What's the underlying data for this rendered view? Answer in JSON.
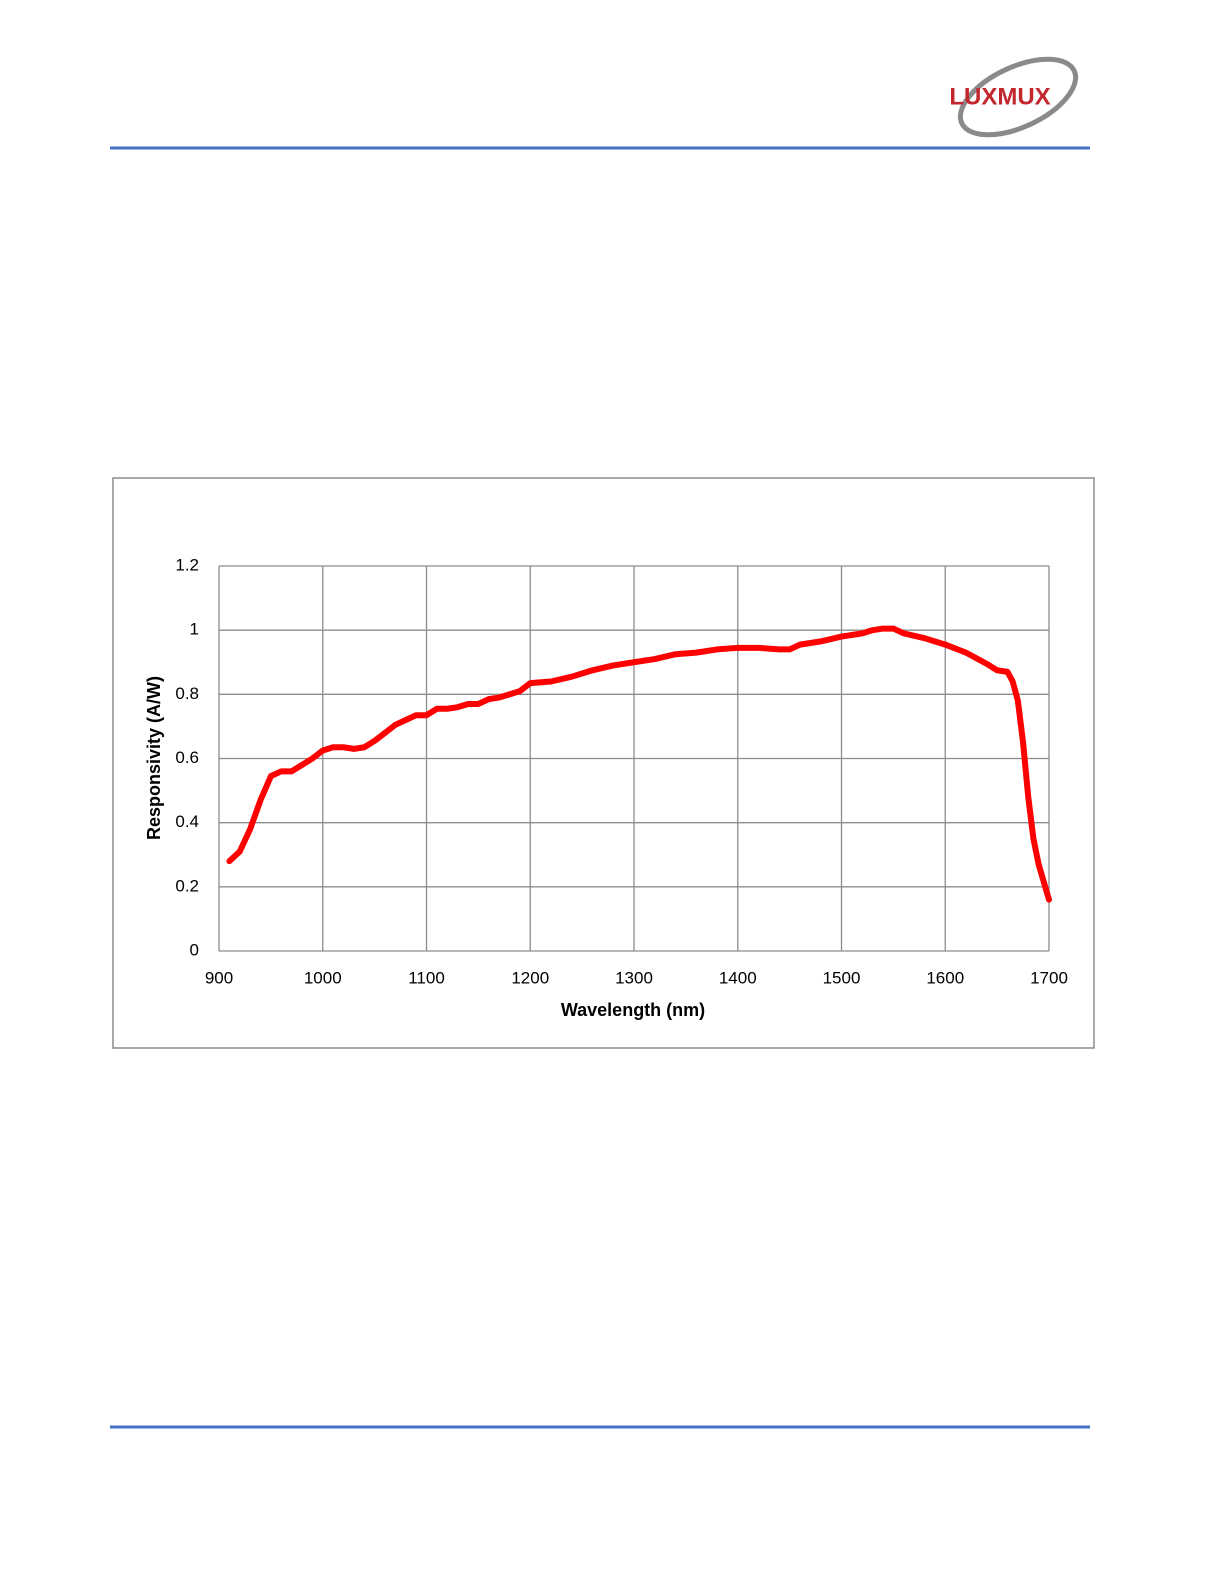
{
  "header": {
    "logo": "LUXMUX"
  },
  "chart_data": {
    "type": "line",
    "x_label": "Wavelength (nm)",
    "y_label": "Responsivity (A/W)",
    "x": [
      910,
      920,
      930,
      940,
      950,
      960,
      970,
      980,
      990,
      1000,
      1010,
      1020,
      1030,
      1040,
      1050,
      1060,
      1070,
      1080,
      1090,
      1100,
      1110,
      1120,
      1130,
      1140,
      1150,
      1160,
      1170,
      1180,
      1190,
      1200,
      1220,
      1240,
      1260,
      1280,
      1300,
      1320,
      1340,
      1360,
      1380,
      1400,
      1420,
      1440,
      1450,
      1460,
      1480,
      1500,
      1520,
      1530,
      1540,
      1550,
      1560,
      1580,
      1600,
      1620,
      1640,
      1650,
      1660,
      1665,
      1670,
      1675,
      1680,
      1685,
      1690,
      1700
    ],
    "series": [
      {
        "color": "#ff0000",
        "values": [
          0.28,
          0.31,
          0.38,
          0.47,
          0.545,
          0.56,
          0.56,
          0.58,
          0.6,
          0.625,
          0.635,
          0.635,
          0.63,
          0.635,
          0.655,
          0.68,
          0.705,
          0.72,
          0.735,
          0.735,
          0.755,
          0.755,
          0.76,
          0.77,
          0.77,
          0.785,
          0.79,
          0.8,
          0.81,
          0.835,
          0.84,
          0.855,
          0.875,
          0.89,
          0.9,
          0.91,
          0.925,
          0.93,
          0.94,
          0.945,
          0.945,
          0.94,
          0.94,
          0.955,
          0.965,
          0.98,
          0.99,
          1.0,
          1.005,
          1.005,
          0.99,
          0.975,
          0.955,
          0.93,
          0.895,
          0.875,
          0.87,
          0.84,
          0.78,
          0.65,
          0.48,
          0.35,
          0.27,
          0.16
        ]
      }
    ],
    "xlim": [
      900,
      1700
    ],
    "xticks": [
      900,
      1000,
      1100,
      1200,
      1300,
      1400,
      1500,
      1600,
      1700
    ],
    "ylim": [
      0,
      1.2
    ],
    "yticks": [
      0,
      0.2,
      0.4,
      0.6,
      0.8,
      1,
      1.2
    ],
    "grid": true
  }
}
